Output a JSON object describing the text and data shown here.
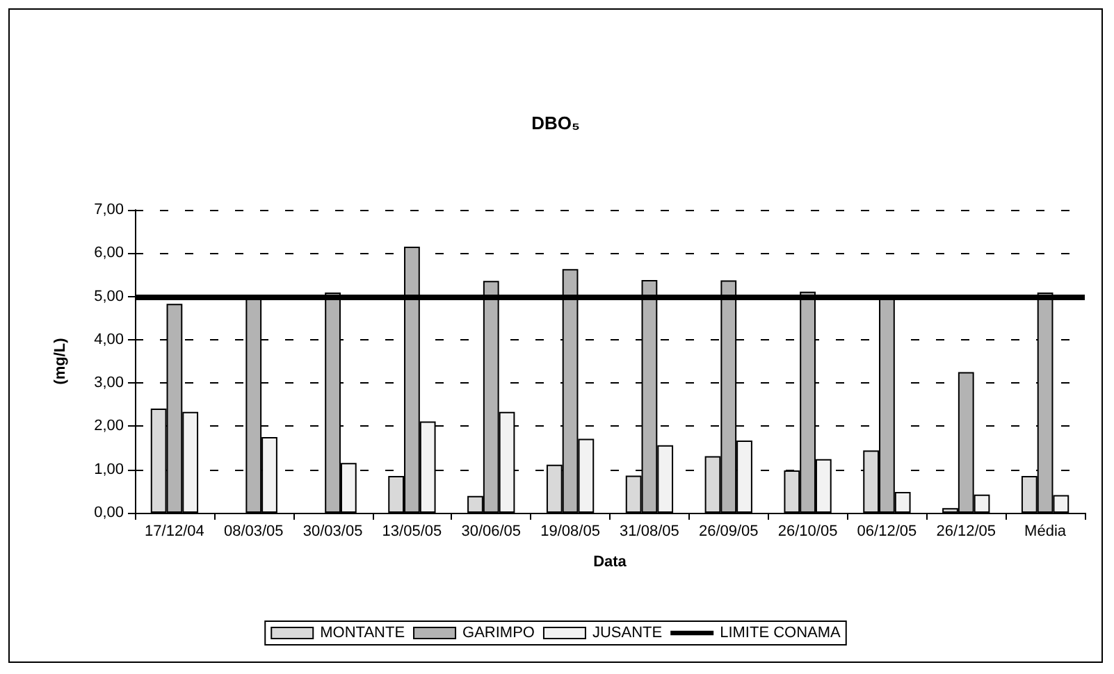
{
  "chart_data": {
    "type": "bar",
    "title": "DBO₅",
    "xlabel": "Data",
    "ylabel": "(mg/L)",
    "categories": [
      "17/12/04",
      "08/03/05",
      "30/03/05",
      "13/05/05",
      "30/06/05",
      "19/08/05",
      "31/08/05",
      "26/09/05",
      "26/10/05",
      "06/12/05",
      "26/12/05",
      "Média"
    ],
    "series": [
      {
        "name": "MONTANTE",
        "color": "#d9d9d9",
        "values": [
          2.41,
          null,
          null,
          0.85,
          0.39,
          1.11,
          0.86,
          1.31,
          0.98,
          1.44,
          0.11,
          0.85
        ]
      },
      {
        "name": "GARIMPO",
        "color": "#b3b3b3",
        "values": [
          4.83,
          4.97,
          5.09,
          6.15,
          5.36,
          5.63,
          5.38,
          5.37,
          5.11,
          5.01,
          3.25,
          5.09
        ]
      },
      {
        "name": "JUSANTE",
        "color": "#f2f2f2",
        "values": [
          2.33,
          1.75,
          1.15,
          2.11,
          2.33,
          1.71,
          1.56,
          1.67,
          1.24,
          0.48,
          0.42,
          0.41
        ]
      }
    ],
    "ylim": [
      0,
      7
    ],
    "yticks": [
      {
        "value": 0,
        "label": "0,00"
      },
      {
        "value": 1,
        "label": "1,00"
      },
      {
        "value": 2,
        "label": "2,00"
      },
      {
        "value": 3,
        "label": "3,00"
      },
      {
        "value": 4,
        "label": "4,00"
      },
      {
        "value": 5,
        "label": "5,00"
      },
      {
        "value": 6,
        "label": "6,00"
      },
      {
        "value": 7,
        "label": "7,00"
      }
    ],
    "ref_lines": [
      {
        "axis": "y",
        "value": 5,
        "label": "LIMITE CONAMA",
        "color": "#000000"
      }
    ],
    "grid": "y",
    "legend": "bottom"
  }
}
